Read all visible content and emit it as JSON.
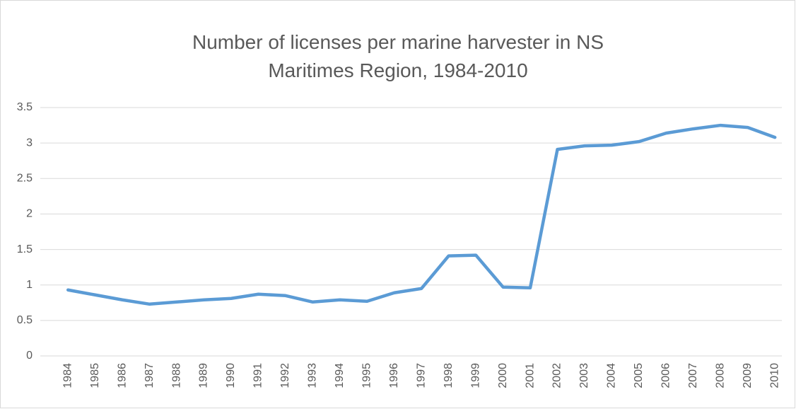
{
  "chart_data": {
    "type": "line",
    "title": "Number of licenses per marine harvester in NS Maritimes Region, 1984-2010",
    "categories": [
      "1984",
      "1985",
      "1986",
      "1987",
      "1988",
      "1989",
      "1990",
      "1991",
      "1992",
      "1993",
      "1994",
      "1995",
      "1996",
      "1997",
      "1998",
      "1999",
      "2000",
      "2001",
      "2002",
      "2003",
      "2004",
      "2005",
      "2006",
      "2007",
      "2008",
      "2009",
      "2010"
    ],
    "series": [
      {
        "color": "#5b9bd5",
        "values": [
          0.93,
          0.86,
          0.79,
          0.73,
          0.76,
          0.79,
          0.81,
          0.87,
          0.85,
          0.76,
          0.79,
          0.77,
          0.89,
          0.95,
          1.41,
          1.42,
          0.97,
          0.96,
          2.91,
          2.96,
          2.97,
          3.02,
          3.14,
          3.2,
          3.25,
          3.22,
          3.08
        ]
      }
    ],
    "ylim": [
      0,
      3.5
    ],
    "yticks": [
      0,
      0.5,
      1,
      1.5,
      2,
      2.5,
      3,
      3.5
    ],
    "grid": true
  }
}
